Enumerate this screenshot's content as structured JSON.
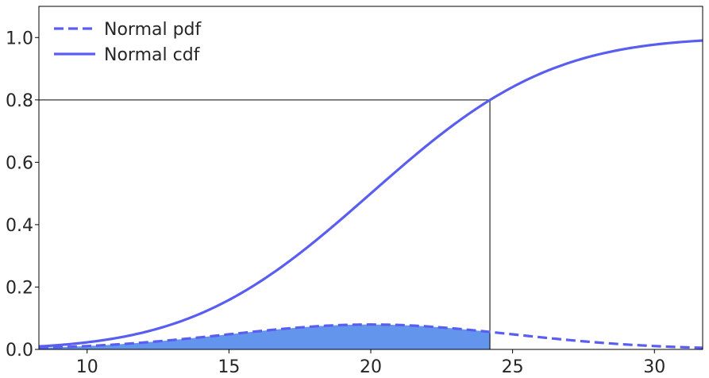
{
  "chart_data": {
    "type": "line",
    "title": "",
    "xlabel": "",
    "ylabel": "",
    "xlim": [
      8.3,
      31.7
    ],
    "ylim": [
      0,
      1.1
    ],
    "x_ticks": [
      10,
      15,
      20,
      25,
      30
    ],
    "y_ticks": [
      0.0,
      0.2,
      0.4,
      0.6,
      0.8,
      1.0
    ],
    "x_tick_labels": [
      "10",
      "15",
      "20",
      "25",
      "30"
    ],
    "y_tick_labels": [
      "0.0",
      "0.2",
      "0.4",
      "0.6",
      "0.8",
      "1.0"
    ],
    "grid": false,
    "legend_position": "top-left",
    "distribution": {
      "family": "normal",
      "mean": 20,
      "sd": 5
    },
    "series": [
      {
        "name": "Normal pdf",
        "style": "dashed",
        "color": "#5a5ef0",
        "x": [
          8.3,
          10,
          12,
          14,
          16,
          18,
          20,
          22,
          24,
          26,
          28,
          30,
          31.7
        ],
        "y": [
          0.0052,
          0.0108,
          0.0222,
          0.0388,
          0.0579,
          0.0737,
          0.0798,
          0.0737,
          0.0579,
          0.0388,
          0.0222,
          0.0108,
          0.0052
        ]
      },
      {
        "name": "Normal cdf",
        "style": "solid",
        "color": "#5a5ef0",
        "x": [
          8.3,
          10,
          12,
          14,
          16,
          18,
          20,
          22,
          24,
          26,
          28,
          30,
          31.7
        ],
        "y": [
          0.0096,
          0.0228,
          0.0548,
          0.1151,
          0.2119,
          0.3446,
          0.5,
          0.6554,
          0.7881,
          0.8849,
          0.9452,
          0.9772,
          0.9904
        ]
      }
    ],
    "shaded_region": {
      "series": "Normal pdf",
      "x_from": 8.3,
      "x_to": 24.2,
      "color": "#6495ed"
    },
    "reference_lines": {
      "x": 24.2,
      "y": 0.8,
      "color": "#000000"
    }
  }
}
